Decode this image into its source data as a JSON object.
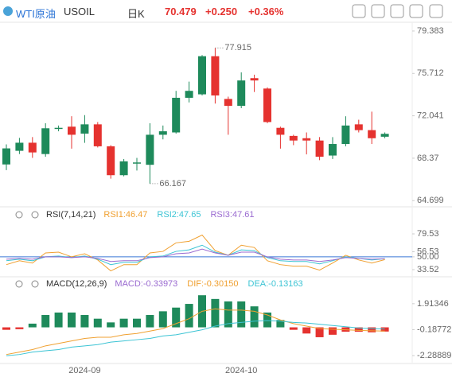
{
  "header": {
    "symbol": "WTI原油",
    "code": "USOIL",
    "period": "日K",
    "price": "70.479",
    "change": "+0.250",
    "change_pct": "+0.36%"
  },
  "chart_data": [
    {
      "type": "candlestick",
      "categories": [
        null,
        null,
        null,
        null,
        null,
        null,
        "2024-09",
        null,
        null,
        null,
        null,
        null,
        null,
        null,
        null,
        null,
        null,
        null,
        "2024-10",
        null,
        null,
        null,
        null,
        null,
        null,
        null,
        null,
        null,
        null,
        null
      ],
      "open": [
        67.83,
        69.01,
        69.71,
        68.73,
        70.9,
        71.1,
        70.5,
        71.3,
        69.4,
        66.9,
        67.9,
        67.8,
        70.4,
        70.6,
        73.6,
        73.9,
        77.2,
        73.5,
        72.9,
        75.3,
        74.4,
        71.0,
        70.3,
        70.1,
        69.9,
        68.6,
        69.6,
        71.3,
        70.8,
        70.23
      ],
      "high": [
        69.57,
        70.13,
        70.2,
        71.4,
        71.2,
        72.0,
        72.1,
        71.5,
        69.5,
        68.3,
        68.4,
        71.4,
        71.2,
        74.2,
        75.0,
        77.3,
        77.915,
        73.7,
        75.8,
        75.6,
        74.5,
        71.1,
        70.4,
        70.6,
        70.2,
        70.2,
        72.0,
        71.7,
        72.4,
        70.6
      ],
      "low": [
        67.34,
        68.73,
        68.4,
        68.5,
        70.7,
        69.2,
        69.7,
        69.3,
        66.6,
        66.8,
        67.3,
        66.167,
        70.0,
        70.5,
        73.2,
        73.8,
        73.1,
        70.4,
        72.7,
        74.1,
        71.4,
        69.2,
        69.5,
        68.7,
        68.2,
        68.3,
        69.4,
        70.6,
        69.6,
        70.1
      ],
      "close": [
        69.22,
        69.71,
        68.87,
        70.96,
        71.0,
        70.4,
        71.3,
        69.4,
        66.9,
        68.1,
        68.0,
        70.4,
        70.7,
        73.6,
        74.2,
        77.2,
        73.8,
        72.9,
        75.1,
        75.1,
        71.5,
        70.4,
        69.9,
        69.9,
        68.5,
        69.6,
        71.2,
        70.8,
        70.1,
        70.479
      ],
      "up_color": "#1e8a5b",
      "down_color": "#e5322f",
      "high_label": "77.915",
      "low_label": "66.167",
      "ylim": [
        64.3,
        80.0
      ],
      "yticks": [
        79.383,
        75.712,
        72.041,
        68.37,
        64.699
      ]
    },
    {
      "type": "line",
      "title": "RSI(7,14,21)",
      "series": [
        {
          "name": "RSI1:46.47",
          "color": "#f0a030",
          "values": [
            40,
            45,
            42,
            55,
            56,
            50,
            54,
            46,
            32,
            40,
            40,
            55,
            57,
            68,
            70,
            78,
            58,
            52,
            65,
            62,
            45,
            40,
            38,
            38,
            33,
            42,
            52,
            46,
            42,
            46.47
          ]
        },
        {
          "name": "RSI2:47.65",
          "color": "#3cc4d4",
          "values": [
            45,
            47,
            45,
            50,
            51,
            49,
            51,
            47,
            40,
            43,
            43,
            50,
            51,
            57,
            59,
            65,
            56,
            52,
            59,
            58,
            49,
            45,
            44,
            44,
            41,
            45,
            50,
            48,
            46,
            47.65
          ]
        },
        {
          "name": "RSI3:47.61",
          "color": "#9a6ad0",
          "values": [
            47,
            48,
            47,
            50,
            50,
            49,
            50,
            48,
            44,
            45,
            45,
            49,
            50,
            54,
            55,
            60,
            55,
            52,
            56,
            56,
            50,
            47,
            46,
            46,
            44,
            46,
            49,
            48,
            47,
            47.61
          ]
        }
      ],
      "ref_line": 50,
      "ref_color": "#3a78d8",
      "ylim": [
        26.4,
        90.8
      ],
      "yticks": [
        79.53,
        56.53,
        {
          "value": 50,
          "label": "50.00"
        },
        33.52
      ]
    },
    {
      "type": "macd",
      "title": "MACD(12,26,9)",
      "up_color": "#1e8a5b",
      "down_color": "#e5322f",
      "series": [
        {
          "name": "MACD:-0.33973",
          "color": "#9a6ad0",
          "values": [
            -0.2,
            -0.15,
            0.3,
            1.0,
            1.2,
            1.2,
            1.0,
            0.7,
            0.4,
            0.7,
            0.7,
            1.0,
            1.3,
            1.6,
            1.9,
            2.6,
            2.3,
            2.1,
            2.1,
            1.7,
            1.2,
            0.6,
            -0.2,
            -0.5,
            -0.8,
            -0.6,
            -0.35,
            -0.35,
            -0.4,
            -0.33973
          ]
        },
        {
          "name": "DIF:-0.30150",
          "color": "#f0a030",
          "values": [
            -2.2,
            -2.0,
            -1.8,
            -1.5,
            -1.3,
            -1.1,
            -0.9,
            -0.8,
            -0.8,
            -0.6,
            -0.5,
            -0.3,
            -0.1,
            0.3,
            0.7,
            1.3,
            1.5,
            1.4,
            1.4,
            1.3,
            1.0,
            0.6,
            0.3,
            0.1,
            -0.1,
            -0.15,
            -0.2,
            -0.25,
            -0.28,
            -0.3015
          ]
        },
        {
          "name": "DEA:-0.13163",
          "color": "#3cc4d4",
          "values": [
            -2.3,
            -2.2,
            -2.0,
            -1.9,
            -1.8,
            -1.6,
            -1.5,
            -1.4,
            -1.2,
            -1.1,
            -1.0,
            -0.9,
            -0.7,
            -0.6,
            -0.4,
            -0.2,
            0.1,
            0.3,
            0.4,
            0.5,
            0.55,
            0.5,
            0.4,
            0.35,
            0.25,
            0.15,
            0.05,
            -0.05,
            -0.1,
            -0.13163
          ]
        }
      ],
      "ylim": [
        -2.8,
        2.87
      ],
      "yticks": [
        1.91346,
        -0.18772,
        -2.28889
      ]
    }
  ]
}
